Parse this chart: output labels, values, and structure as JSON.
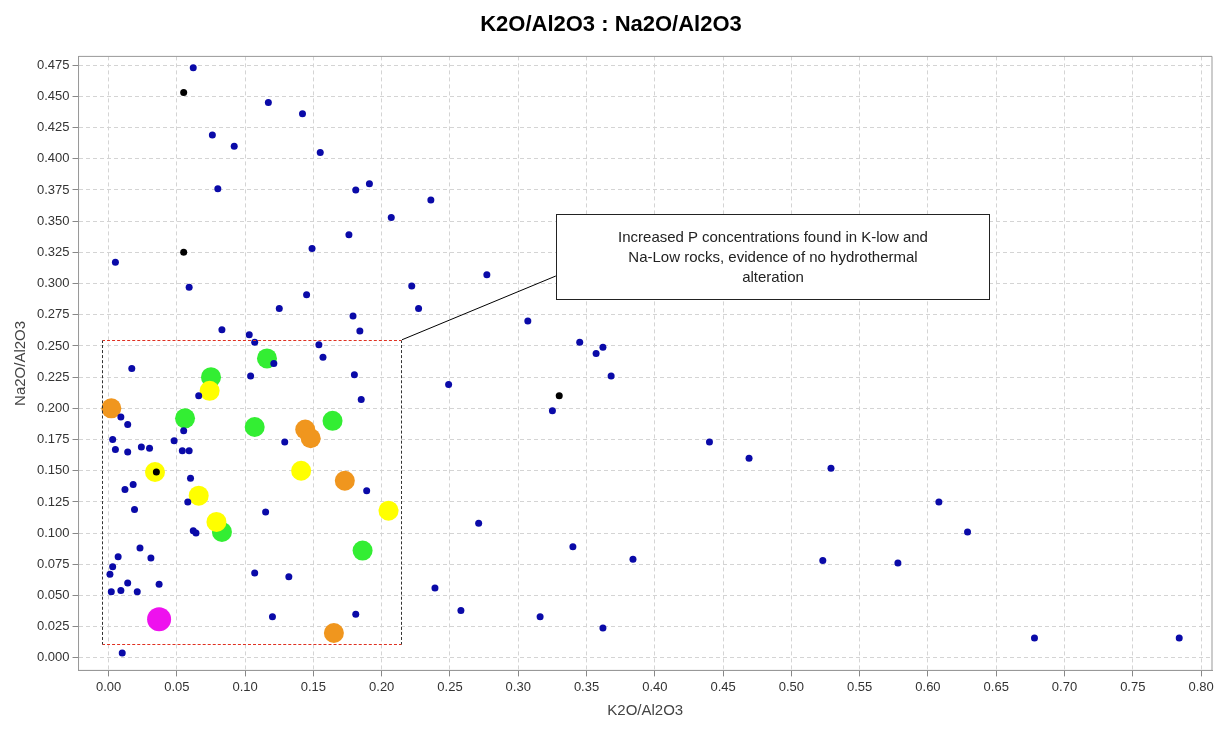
{
  "chart_data": {
    "type": "scatter",
    "title": "K2O/Al2O3 : Na2O/Al2O3",
    "xlabel": "K2O/Al2O3",
    "ylabel": "Na2O/Al2O3",
    "xlim": [
      -0.022,
      0.808
    ],
    "ylim": [
      -0.01,
      0.482
    ],
    "xticks": [
      {
        "value": 0,
        "label": "0.00"
      },
      {
        "value": 0.05,
        "label": "0.05"
      },
      {
        "value": 0.1,
        "label": "0.10"
      },
      {
        "value": 0.15,
        "label": "0.15"
      },
      {
        "value": 0.2,
        "label": "0.20"
      },
      {
        "value": 0.25,
        "label": "0.25"
      },
      {
        "value": 0.3,
        "label": "0.30"
      },
      {
        "value": 0.35,
        "label": "0.35"
      },
      {
        "value": 0.4,
        "label": "0.40"
      },
      {
        "value": 0.45,
        "label": "0.45"
      },
      {
        "value": 0.5,
        "label": "0.50"
      },
      {
        "value": 0.55,
        "label": "0.55"
      },
      {
        "value": 0.6,
        "label": "0.60"
      },
      {
        "value": 0.65,
        "label": "0.65"
      },
      {
        "value": 0.7,
        "label": "0.70"
      },
      {
        "value": 0.75,
        "label": "0.75"
      },
      {
        "value": 0.8,
        "label": "0.80"
      }
    ],
    "yticks": [
      {
        "value": 0,
        "label": "0.000"
      },
      {
        "value": 0.025,
        "label": "0.025"
      },
      {
        "value": 0.05,
        "label": "0.050"
      },
      {
        "value": 0.075,
        "label": "0.075"
      },
      {
        "value": 0.1,
        "label": "0.100"
      },
      {
        "value": 0.125,
        "label": "0.125"
      },
      {
        "value": 0.15,
        "label": "0.150"
      },
      {
        "value": 0.175,
        "label": "0.175"
      },
      {
        "value": 0.2,
        "label": "0.200"
      },
      {
        "value": 0.225,
        "label": "0.225"
      },
      {
        "value": 0.25,
        "label": "0.250"
      },
      {
        "value": 0.275,
        "label": "0.275"
      },
      {
        "value": 0.3,
        "label": "0.300"
      },
      {
        "value": 0.325,
        "label": "0.325"
      },
      {
        "value": 0.35,
        "label": "0.350"
      },
      {
        "value": 0.375,
        "label": "0.375"
      },
      {
        "value": 0.4,
        "label": "0.400"
      },
      {
        "value": 0.425,
        "label": "0.425"
      },
      {
        "value": 0.45,
        "label": "0.450"
      },
      {
        "value": 0.475,
        "label": "0.475"
      }
    ],
    "grid": true,
    "marker": "circle",
    "annotations": [
      "Increased P concentrations found in K-low and Na-Low rocks, evidence of no hydrothermal alteration"
    ],
    "series": [
      {
        "color": "#0a0aa8",
        "x": [
          0.062,
          0.117,
          0.142,
          0.076,
          0.092,
          0.155,
          0.08,
          0.191,
          0.181,
          0.236,
          0.207,
          0.176,
          0.149,
          0.005,
          0.059,
          0.222,
          0.145,
          0.227,
          0.125,
          0.179,
          0.184,
          0.083,
          0.103,
          0.107,
          0.154,
          0.157,
          0.121,
          0.017,
          0.104,
          0.18,
          0.066,
          0.185,
          0.009,
          0.014,
          0.055,
          0.003,
          0.048,
          0.129,
          0.005,
          0.014,
          0.024,
          0.03,
          0.054,
          0.059,
          0.06,
          0.012,
          0.018,
          0.189,
          0.058,
          0.019,
          0.115,
          0.062,
          0.064,
          0.023,
          0.007,
          0.031,
          0.003,
          0.001,
          0.107,
          0.132,
          0.239,
          0.002,
          0.009,
          0.014,
          0.021,
          0.037,
          0.12,
          0.181,
          0.01,
          0.277,
          0.307,
          0.345,
          0.362,
          0.357,
          0.368,
          0.249,
          0.325,
          0.44,
          0.469,
          0.271,
          0.34,
          0.384,
          0.258,
          0.316,
          0.362,
          0.523,
          0.529,
          0.608,
          0.629,
          0.578,
          0.678,
          0.784
        ],
        "values": [
          0.473,
          0.445,
          0.436,
          0.419,
          0.41,
          0.405,
          0.376,
          0.38,
          0.375,
          0.367,
          0.353,
          0.339,
          0.328,
          0.317,
          0.297,
          0.298,
          0.291,
          0.28,
          0.28,
          0.274,
          0.262,
          0.263,
          0.259,
          0.253,
          0.251,
          0.241,
          0.236,
          0.232,
          0.226,
          0.227,
          0.21,
          0.207,
          0.193,
          0.187,
          0.182,
          0.175,
          0.174,
          0.173,
          0.167,
          0.165,
          0.169,
          0.168,
          0.166,
          0.166,
          0.144,
          0.135,
          0.139,
          0.134,
          0.125,
          0.119,
          0.117,
          0.102,
          0.1,
          0.088,
          0.081,
          0.08,
          0.073,
          0.067,
          0.068,
          0.065,
          0.056,
          0.053,
          0.054,
          0.06,
          0.053,
          0.059,
          0.033,
          0.035,
          0.004,
          0.307,
          0.27,
          0.253,
          0.249,
          0.244,
          0.226,
          0.219,
          0.198,
          0.173,
          0.16,
          0.108,
          0.089,
          0.079,
          0.038,
          0.033,
          0.024,
          0.078,
          0.152,
          0.125,
          0.101,
          0.076,
          0.016,
          0.016
        ]
      },
      {
        "color": "#000000",
        "x": [
          0.055,
          0.055,
          0.33,
          0.035
        ],
        "values": [
          0.453,
          0.325,
          0.21,
          0.149
        ]
      },
      {
        "color": "#ffff00",
        "x": [
          0.074,
          0.034,
          0.141,
          0.066,
          0.205,
          0.079
        ],
        "values": [
          0.214,
          0.149,
          0.15,
          0.13,
          0.118,
          0.109
        ]
      },
      {
        "color": "#33ee33",
        "x": [
          0.116,
          0.075,
          0.056,
          0.107,
          0.164,
          0.083,
          0.186
        ],
        "values": [
          0.24,
          0.225,
          0.192,
          0.185,
          0.19,
          0.101,
          0.086
        ]
      },
      {
        "color": "#f0961e",
        "x": [
          0.002,
          0.144,
          0.148,
          0.173,
          0.165
        ],
        "values": [
          0.2,
          0.183,
          0.176,
          0.142,
          0.02
        ]
      },
      {
        "color": "#ee11ee",
        "x": [
          0.037
        ],
        "values": [
          0.031
        ]
      }
    ]
  }
}
